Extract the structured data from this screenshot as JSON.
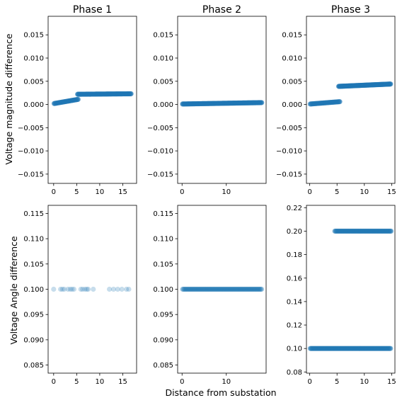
{
  "figure": {
    "ylabel_row1": "Voltage magnitude difference",
    "ylabel_row2": "Voltage Angle difference",
    "xlabel": "Distance from substation"
  },
  "colors": {
    "marker": "#1f77b4",
    "axis": "#000000",
    "background": "#ffffff"
  },
  "chart_data": [
    {
      "type": "scatter",
      "title": "Phase 1",
      "xlim": [
        -1.2,
        18
      ],
      "ylim": [
        -0.017,
        0.019
      ],
      "xticks": [
        0,
        5,
        10,
        15
      ],
      "xtick_labels": [
        "0",
        "5",
        "10",
        "15"
      ],
      "yticks": [
        -0.015,
        -0.01,
        -0.005,
        0.0,
        0.005,
        0.01,
        0.015
      ],
      "ytick_labels": [
        "−0.015",
        "−0.010",
        "−0.005",
        "0.000",
        "0.005",
        "0.010",
        "0.015"
      ],
      "marker_alpha": 0.6,
      "segments": [
        {
          "x": [
            0.1,
            5.3
          ],
          "y": [
            0.0002,
            0.0011
          ],
          "n": 35
        },
        {
          "x": [
            5.2,
            16.8
          ],
          "y": [
            0.0022,
            0.0023
          ],
          "n": 90
        }
      ]
    },
    {
      "type": "scatter",
      "title": "Phase 2",
      "xlim": [
        -1,
        19
      ],
      "ylim": [
        -0.017,
        0.019
      ],
      "xticks": [
        0,
        10
      ],
      "xtick_labels": [
        "0",
        "10"
      ],
      "yticks": [
        -0.015,
        -0.01,
        -0.005,
        0.0,
        0.005,
        0.01,
        0.015
      ],
      "ytick_labels": [
        "−0.015",
        "−0.010",
        "−0.005",
        "0.000",
        "0.005",
        "0.010",
        "0.015"
      ],
      "marker_alpha": 0.6,
      "segments": [
        {
          "x": [
            0.1,
            18.0
          ],
          "y": [
            0.0001,
            0.0004
          ],
          "n": 130
        }
      ]
    },
    {
      "type": "scatter",
      "title": "Phase 3",
      "xlim": [
        -0.6,
        15.6
      ],
      "ylim": [
        -0.017,
        0.019
      ],
      "xticks": [
        0,
        5,
        10,
        15
      ],
      "xtick_labels": [
        "0",
        "5",
        "10",
        "15"
      ],
      "yticks": [
        -0.015,
        -0.01,
        -0.005,
        0.0,
        0.005,
        0.01,
        0.015
      ],
      "ytick_labels": [
        "−0.015",
        "−0.010",
        "−0.005",
        "0.000",
        "0.005",
        "0.010",
        "0.015"
      ],
      "marker_alpha": 0.6,
      "segments": [
        {
          "x": [
            0.1,
            5.5
          ],
          "y": [
            0.0001,
            0.0006
          ],
          "n": 40
        },
        {
          "x": [
            5.3,
            14.8
          ],
          "y": [
            0.0039,
            0.0044
          ],
          "n": 110
        }
      ]
    },
    {
      "type": "scatter",
      "title": "",
      "xlim": [
        -1.2,
        18
      ],
      "ylim": [
        0.0834,
        0.1166
      ],
      "xticks": [
        0,
        5,
        10,
        15
      ],
      "xtick_labels": [
        "0",
        "5",
        "10",
        "15"
      ],
      "yticks": [
        0.085,
        0.09,
        0.095,
        0.1,
        0.105,
        0.11,
        0.115
      ],
      "ytick_labels": [
        "0.085",
        "0.090",
        "0.095",
        "0.100",
        "0.105",
        "0.110",
        "0.115"
      ],
      "marker_alpha": 0.25,
      "x": [
        0.0,
        1.5,
        1.9,
        2.3,
        3.1,
        3.6,
        4.0,
        4.4,
        5.9,
        6.3,
        6.8,
        7.2,
        7.5,
        8.6,
        12.1,
        13.0,
        13.9,
        14.8,
        15.8,
        16.3
      ],
      "y": [
        0.1,
        0.1,
        0.1,
        0.1,
        0.1,
        0.1,
        0.1,
        0.1,
        0.1,
        0.1,
        0.1,
        0.1,
        0.1,
        0.1,
        0.1,
        0.1,
        0.1,
        0.1,
        0.1,
        0.1
      ]
    },
    {
      "type": "scatter",
      "title": "",
      "xlim": [
        -1,
        19
      ],
      "ylim": [
        0.0834,
        0.1166
      ],
      "xticks": [
        0,
        10
      ],
      "xtick_labels": [
        "0",
        "10"
      ],
      "yticks": [
        0.085,
        0.09,
        0.095,
        0.1,
        0.105,
        0.11,
        0.115
      ],
      "ytick_labels": [
        "0.085",
        "0.090",
        "0.095",
        "0.100",
        "0.105",
        "0.110",
        "0.115"
      ],
      "marker_alpha": 0.3,
      "segments": [
        {
          "x": [
            0.1,
            18.0
          ],
          "y": [
            0.1,
            0.1
          ],
          "n": 120
        }
      ]
    },
    {
      "type": "scatter",
      "title": "",
      "xlim": [
        -0.6,
        15.6
      ],
      "ylim": [
        0.079,
        0.222
      ],
      "xticks": [
        0,
        5,
        10,
        15
      ],
      "xtick_labels": [
        "0",
        "5",
        "10",
        "15"
      ],
      "yticks": [
        0.08,
        0.1,
        0.12,
        0.14,
        0.16,
        0.18,
        0.2,
        0.22
      ],
      "ytick_labels": [
        "0.08",
        "0.10",
        "0.12",
        "0.14",
        "0.16",
        "0.18",
        "0.20",
        "0.22"
      ],
      "marker_alpha": 0.5,
      "segments": [
        {
          "x": [
            0.1,
            14.8
          ],
          "y": [
            0.1,
            0.1
          ],
          "n": 110
        },
        {
          "x": [
            4.6,
            14.9
          ],
          "y": [
            0.2,
            0.2
          ],
          "n": 75
        }
      ]
    }
  ]
}
